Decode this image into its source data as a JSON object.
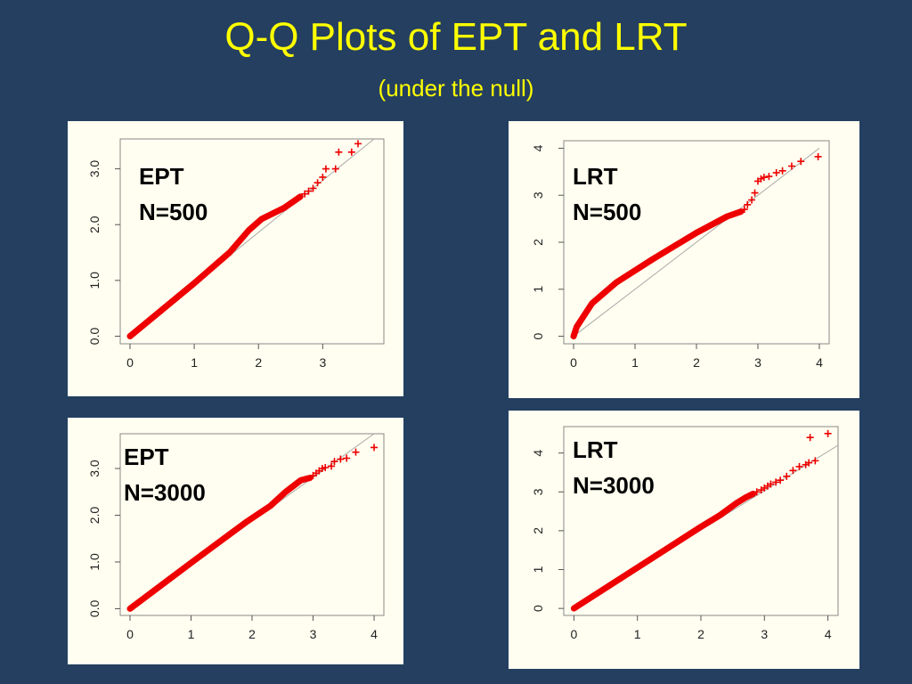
{
  "slide": {
    "title": "Q-Q Plots of EPT and LRT",
    "subtitle": "(under the null)"
  },
  "colors": {
    "background": "#243f60",
    "title": "#ffff00",
    "panel": "#fffef0",
    "points": "#ee0000",
    "reference_line": "#aaaaaa"
  },
  "chart_data": [
    {
      "type": "scatter",
      "marker": "plus",
      "annotation": [
        "EPT",
        "N=500"
      ],
      "xlim": [
        0,
        3.8
      ],
      "ylim": [
        0,
        3.4
      ],
      "x_ticks": [
        "0",
        "1",
        "2",
        "3"
      ],
      "y_ticks": [
        "0.0",
        "1.0",
        "2.0",
        "3.0"
      ],
      "reference_line": [
        [
          0,
          0
        ],
        [
          3.8,
          3.8
        ]
      ],
      "curve": [
        [
          0,
          0
        ],
        [
          1.0,
          0.95
        ],
        [
          1.55,
          1.5
        ],
        [
          1.85,
          1.9
        ],
        [
          2.05,
          2.1
        ],
        [
          2.4,
          2.3
        ],
        [
          2.65,
          2.5
        ]
      ],
      "extreme_points": [
        [
          2.72,
          2.55
        ],
        [
          2.78,
          2.6
        ],
        [
          2.85,
          2.65
        ],
        [
          2.92,
          2.75
        ],
        [
          3.0,
          2.85
        ],
        [
          3.05,
          3.0
        ],
        [
          3.2,
          3.0
        ],
        [
          3.25,
          3.3
        ],
        [
          3.45,
          3.3
        ],
        [
          3.55,
          3.45
        ]
      ],
      "grid": false
    },
    {
      "type": "scatter",
      "marker": "plus",
      "annotation": [
        "LRT",
        "N=500"
      ],
      "xlim": [
        0,
        4
      ],
      "ylim": [
        0,
        4
      ],
      "x_ticks": [
        "0",
        "1",
        "2",
        "3",
        "4"
      ],
      "y_ticks": [
        "0",
        "1",
        "2",
        "3",
        "4"
      ],
      "reference_line": [
        [
          0,
          0
        ],
        [
          4,
          4
        ]
      ],
      "curve": [
        [
          0,
          0
        ],
        [
          0.05,
          0.2
        ],
        [
          0.3,
          0.7
        ],
        [
          0.7,
          1.15
        ],
        [
          1.3,
          1.65
        ],
        [
          2.0,
          2.2
        ],
        [
          2.5,
          2.55
        ],
        [
          2.72,
          2.65
        ]
      ],
      "extreme_points": [
        [
          2.78,
          2.7
        ],
        [
          2.83,
          2.8
        ],
        [
          2.9,
          2.9
        ],
        [
          2.95,
          3.05
        ],
        [
          3.0,
          3.3
        ],
        [
          3.05,
          3.35
        ],
        [
          3.1,
          3.38
        ],
        [
          3.18,
          3.4
        ],
        [
          3.3,
          3.48
        ],
        [
          3.4,
          3.52
        ],
        [
          3.55,
          3.62
        ],
        [
          3.7,
          3.72
        ],
        [
          3.98,
          3.82
        ]
      ],
      "grid": false
    },
    {
      "type": "scatter",
      "marker": "plus",
      "annotation": [
        "EPT",
        "N=3000"
      ],
      "xlim": [
        0,
        4
      ],
      "ylim": [
        0,
        3.6
      ],
      "x_ticks": [
        "0",
        "1",
        "2",
        "3",
        "4"
      ],
      "y_ticks": [
        "0.0",
        "1.0",
        "2.0",
        "3.0"
      ],
      "reference_line": [
        [
          0,
          0
        ],
        [
          4,
          4
        ]
      ],
      "curve": [
        [
          0,
          0
        ],
        [
          1.0,
          0.98
        ],
        [
          1.9,
          1.85
        ],
        [
          2.3,
          2.2
        ],
        [
          2.55,
          2.5
        ],
        [
          2.8,
          2.75
        ],
        [
          2.95,
          2.8
        ]
      ],
      "extreme_points": [
        [
          3.0,
          2.85
        ],
        [
          3.05,
          2.9
        ],
        [
          3.1,
          2.95
        ],
        [
          3.15,
          3.0
        ],
        [
          3.2,
          3.02
        ],
        [
          3.3,
          3.05
        ],
        [
          3.35,
          3.15
        ],
        [
          3.45,
          3.2
        ],
        [
          3.55,
          3.22
        ],
        [
          3.7,
          3.35
        ],
        [
          4.0,
          3.45
        ]
      ],
      "grid": false
    },
    {
      "type": "scatter",
      "marker": "plus",
      "annotation": [
        "LRT",
        "N=3000"
      ],
      "xlim": [
        0,
        4
      ],
      "ylim": [
        0,
        4.5
      ],
      "x_ticks": [
        "0",
        "1",
        "2",
        "3",
        "4"
      ],
      "y_ticks": [
        "0",
        "1",
        "2",
        "3",
        "4"
      ],
      "reference_line": [
        [
          0,
          0
        ],
        [
          4.2,
          4.2
        ]
      ],
      "curve": [
        [
          0,
          0
        ],
        [
          1.0,
          1.05
        ],
        [
          2.0,
          2.1
        ],
        [
          2.3,
          2.4
        ],
        [
          2.55,
          2.7
        ],
        [
          2.7,
          2.85
        ],
        [
          2.82,
          2.95
        ]
      ],
      "extreme_points": [
        [
          2.88,
          3.0
        ],
        [
          2.95,
          3.05
        ],
        [
          3.0,
          3.1
        ],
        [
          3.05,
          3.15
        ],
        [
          3.1,
          3.2
        ],
        [
          3.18,
          3.25
        ],
        [
          3.25,
          3.3
        ],
        [
          3.35,
          3.4
        ],
        [
          3.45,
          3.55
        ],
        [
          3.55,
          3.65
        ],
        [
          3.65,
          3.7
        ],
        [
          3.7,
          3.75
        ],
        [
          3.8,
          3.8
        ],
        [
          3.72,
          4.4
        ],
        [
          4.0,
          4.5
        ]
      ],
      "grid": false
    }
  ]
}
